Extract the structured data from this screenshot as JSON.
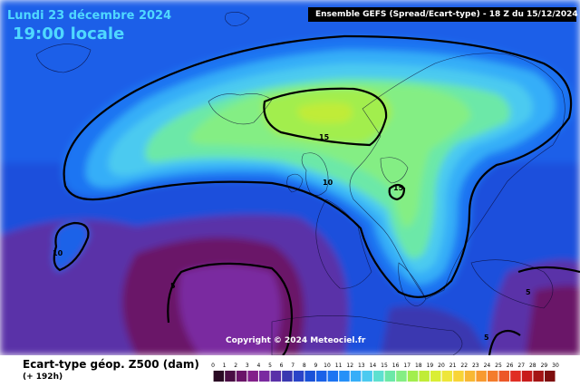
{
  "header": {
    "date": "Lundi 23 décembre 2024",
    "time": "19:00 locale",
    "ensemble_title": "Ensemble GEFS  (Spread/Ecart-type) - 18 Z du 15/12/2024"
  },
  "copyright": "Copyright © 2024 Meteociel.fr",
  "footer": {
    "variable": "Ecart-type géop. Z500 (dam)",
    "lead_time": "(+ 192h)"
  },
  "legend": {
    "labels": [
      "0",
      "1",
      "2",
      "3",
      "4",
      "5",
      "6",
      "7",
      "8",
      "9",
      "10",
      "11",
      "12",
      "13",
      "14",
      "15",
      "16",
      "17",
      "18",
      "19",
      "20",
      "21",
      "22",
      "23",
      "24",
      "25",
      "26",
      "27",
      "28",
      "29",
      "30"
    ],
    "colors": [
      "#2a0a24",
      "#4a0e44",
      "#6a1468",
      "#83208a",
      "#7a2aa0",
      "#5a30a8",
      "#3a38b0",
      "#2a44c8",
      "#1a52d8",
      "#1a62e8",
      "#1c74f2",
      "#2690f8",
      "#36aef8",
      "#4ccaf0",
      "#5ee0d0",
      "#6ce8a8",
      "#84ee84",
      "#a2ee4e",
      "#c0ec38",
      "#daee34",
      "#eee63a",
      "#f8d436",
      "#f8b834",
      "#f89a30",
      "#f47c2c",
      "#ec5828",
      "#e02e24",
      "#c81c1c",
      "#a41414",
      "#7e0e0e"
    ]
  },
  "contours": {
    "high_center": "15",
    "benelux": "15",
    "atlantic": "10",
    "west": "10",
    "south_west": "5",
    "east": "5",
    "south_east": "5"
  }
}
